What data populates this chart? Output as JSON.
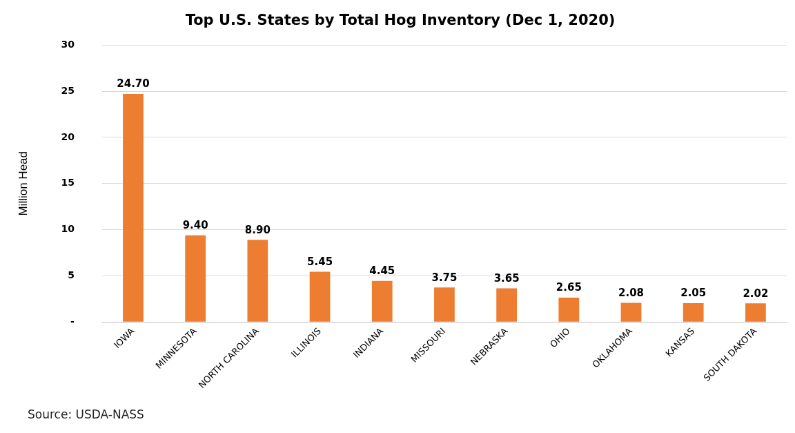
{
  "chart_data": {
    "type": "bar",
    "title": "Top U.S. States by Total Hog Inventory (Dec 1, 2020)",
    "ylabel": "Million Head",
    "categories": [
      "IOWA",
      "MINNESOTA",
      "NORTH CAROLINA",
      "ILLINOIS",
      "INDIANA",
      "MISSOURI",
      "NEBRASKA",
      "OHIO",
      "OKLAHOMA",
      "KANSAS",
      "SOUTH DAKOTA"
    ],
    "values": [
      24.7,
      9.4,
      8.9,
      5.45,
      4.45,
      3.75,
      3.65,
      2.65,
      2.08,
      2.05,
      2.02
    ],
    "value_labels": [
      "24.70",
      "9.40",
      "8.90",
      "5.45",
      "4.45",
      "3.75",
      "3.65",
      "2.65",
      "2.08",
      "2.05",
      "2.02"
    ],
    "color": "#ed7d31",
    "ylim": [
      0,
      30
    ],
    "yticks": [
      {
        "value": 0,
        "label": "-"
      },
      5,
      10,
      15,
      20,
      25,
      30
    ],
    "grid": "y",
    "legend": false,
    "annotations": [
      "Source: USDA-NASS"
    ]
  }
}
